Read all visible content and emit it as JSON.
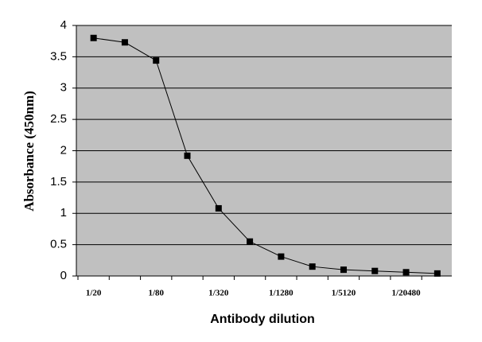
{
  "chart_data": {
    "type": "line",
    "x_label": "Antibody dilution",
    "y_label": "Absorbance (450nm)",
    "categories": [
      "1/20",
      null,
      "1/80",
      null,
      "1/320",
      null,
      "1/1280",
      null,
      "1/5120",
      null,
      "1/20480",
      null
    ],
    "values": [
      3.8,
      3.73,
      3.44,
      1.92,
      1.08,
      0.55,
      0.31,
      0.15,
      0.1,
      0.08,
      0.06,
      0.04
    ],
    "color": "#000000",
    "ylim": [
      0,
      4
    ],
    "yticks": [
      0,
      0.5,
      1,
      1.5,
      2,
      2.5,
      3,
      3.5,
      4
    ],
    "grid": true
  }
}
